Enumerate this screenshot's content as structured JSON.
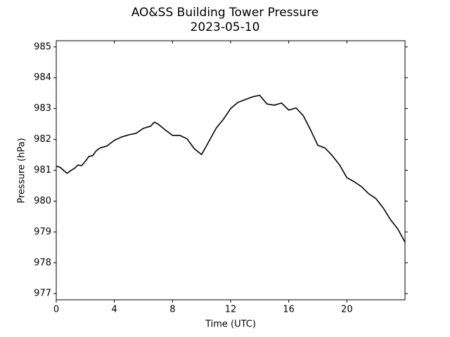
{
  "chart_data": {
    "type": "line",
    "title": "AO&SS Building Tower Pressure",
    "subtitle": "2023-05-10",
    "x_label": "Time (UTC)",
    "y_label": "Pressure (hPa)",
    "xlim": [
      0,
      24
    ],
    "xticks": [
      0,
      4,
      8,
      12,
      16,
      20
    ],
    "ylim": [
      976.8,
      985.2
    ],
    "yticks": [
      977,
      978,
      979,
      980,
      981,
      982,
      983,
      984,
      985
    ],
    "grid": false,
    "x": [
      0,
      0.25,
      0.5,
      0.75,
      1.0,
      1.25,
      1.5,
      1.75,
      2.0,
      2.25,
      2.5,
      2.75,
      3.0,
      3.5,
      4.0,
      4.5,
      5.0,
      5.5,
      6.0,
      6.5,
      6.75,
      7.0,
      7.5,
      8.0,
      8.5,
      9.0,
      9.5,
      10.0,
      10.5,
      11.0,
      11.5,
      12.0,
      12.5,
      13.0,
      13.5,
      14.0,
      14.5,
      15.0,
      15.5,
      16.0,
      16.5,
      17.0,
      17.5,
      18.0,
      18.5,
      19.0,
      19.5,
      20.0,
      20.5,
      21.0,
      21.5,
      22.0,
      22.5,
      23.0,
      23.5,
      24.0
    ],
    "series": [
      {
        "color": "#000000",
        "values": [
          981.13,
          981.1,
          981.0,
          980.9,
          980.99,
          981.06,
          981.17,
          981.15,
          981.29,
          981.45,
          981.47,
          981.63,
          981.72,
          981.79,
          981.97,
          982.08,
          982.15,
          982.2,
          982.36,
          982.43,
          982.56,
          982.5,
          982.31,
          982.13,
          982.13,
          982.02,
          981.7,
          981.51,
          981.93,
          982.36,
          982.65,
          983.0,
          983.2,
          983.29,
          983.38,
          983.43,
          983.15,
          983.11,
          983.18,
          982.95,
          983.02,
          982.77,
          982.31,
          981.81,
          981.72,
          981.47,
          981.17,
          980.76,
          980.63,
          980.47,
          980.24,
          980.08,
          979.78,
          979.4,
          979.1,
          978.67
        ]
      }
    ]
  }
}
